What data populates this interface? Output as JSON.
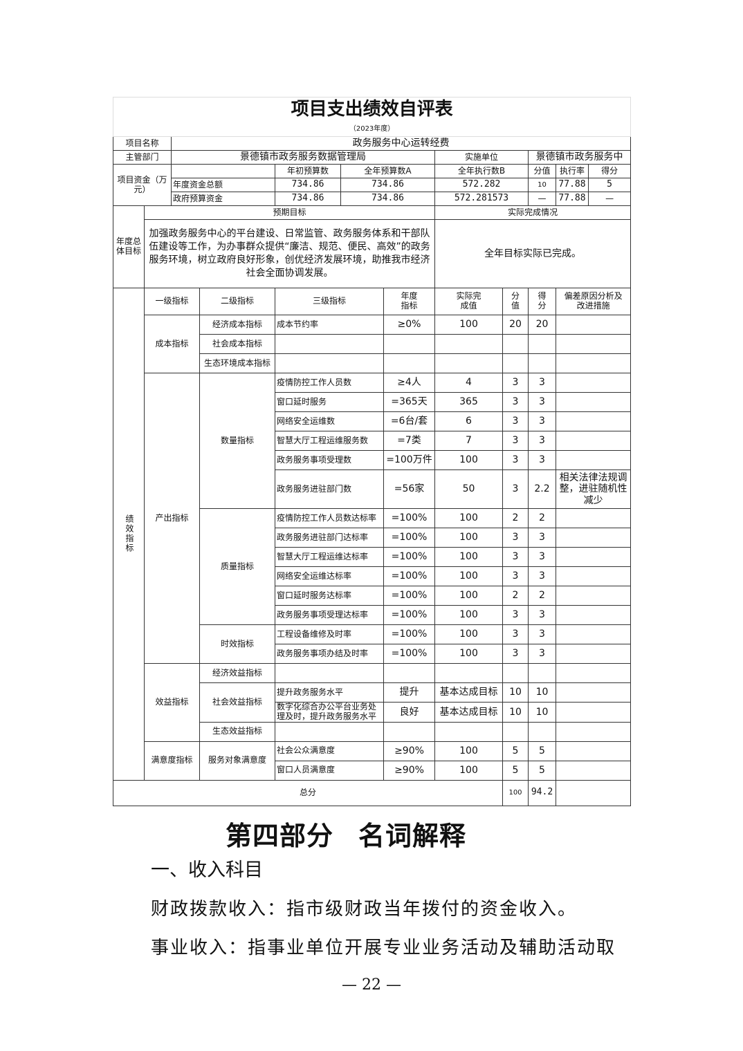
{
  "table": {
    "title": "项目支出绩效自评表",
    "year": "（2023年度）",
    "project_name_label": "项目名称",
    "project_name": "政务服务中心运转经费",
    "dept_label": "主管部门",
    "dept": "景德镇市政务服务数据管理局",
    "impl_label": "实施单位",
    "impl": "景德镇市政务服务中",
    "fund_label": "项目资金（万元）",
    "fund_headers": [
      "年初预算数",
      "全年预算数A",
      "全年执行数B",
      "分值",
      "执行率",
      "得分"
    ],
    "fund_rows": [
      {
        "name": "年度资金总额",
        "init": "734.86",
        "full": "734.86",
        "exec": "572.282",
        "score": "10",
        "rate": "77.88",
        "got": "5"
      },
      {
        "name": "政府预算资金",
        "init": "734.86",
        "full": "734.86",
        "exec": "572.281573",
        "score": "—",
        "rate": "77.88",
        "got": "—"
      }
    ],
    "goal_label": "年度总体目标",
    "goal_expected_label": "预期目标",
    "goal_actual_label": "实际完成情况",
    "goal_expected": "加强政务服务中心的平台建设、日常监管、政务服务体系和干部队伍建设等工作，为办事群众提供“廉洁、规范、便民、高效”的政务服务环境，树立政府良好形象，创优经济发展环境，助推我市经济社会全面协调发展。",
    "goal_actual": "全年目标实际已完成。",
    "perf_label": "绩效指标",
    "ind_headers": [
      "一级指标",
      "二级指标",
      "三级指标",
      "年度指标",
      "实际完成值",
      "分值",
      "得分",
      "偏差原因分析及改进措施"
    ],
    "indicators": [
      {
        "name": "成本指标",
        "subs": [
          {
            "name": "经济成本指标",
            "items": [
              {
                "name": "成本节约率",
                "target": "≥0%",
                "actual": "100",
                "score": "20",
                "got": "20",
                "note": ""
              }
            ]
          },
          {
            "name": "社会成本指标",
            "items": [
              {
                "name": "",
                "target": "",
                "actual": "",
                "score": "",
                "got": "",
                "note": ""
              }
            ]
          },
          {
            "name": "生态环境成本指标",
            "items": [
              {
                "name": "",
                "target": "",
                "actual": "",
                "score": "",
                "got": "",
                "note": ""
              }
            ]
          }
        ]
      },
      {
        "name": "产出指标",
        "subs": [
          {
            "name": "数量指标",
            "items": [
              {
                "name": "疫情防控工作人员数",
                "target": "≥4人",
                "actual": "4",
                "score": "3",
                "got": "3",
                "note": ""
              },
              {
                "name": "窗口延时服务",
                "target": "=365天",
                "actual": "365",
                "score": "3",
                "got": "3",
                "note": ""
              },
              {
                "name": "网络安全运维数",
                "target": "=6台/套",
                "actual": "6",
                "score": "3",
                "got": "3",
                "note": ""
              },
              {
                "name": "智慧大厅工程运维服务数",
                "target": "=7类",
                "actual": "7",
                "score": "3",
                "got": "3",
                "note": ""
              },
              {
                "name": "政务服务事项受理数",
                "target": "=100万件",
                "actual": "100",
                "score": "3",
                "got": "3",
                "note": ""
              },
              {
                "name": "政务服务进驻部门数",
                "target": "=56家",
                "actual": "50",
                "score": "3",
                "got": "2.2",
                "note": "相关法律法规调整，进驻随机性减少",
                "tall": true
              }
            ]
          },
          {
            "name": "质量指标",
            "items": [
              {
                "name": "疫情防控工作人员数达标率",
                "target": "=100%",
                "actual": "100",
                "score": "2",
                "got": "2",
                "note": ""
              },
              {
                "name": "政务服务进驻部门达标率",
                "target": "=100%",
                "actual": "100",
                "score": "3",
                "got": "3",
                "note": ""
              },
              {
                "name": "智慧大厅工程运维达标率",
                "target": "=100%",
                "actual": "100",
                "score": "3",
                "got": "3",
                "note": ""
              },
              {
                "name": "网络安全运维达标率",
                "target": "=100%",
                "actual": "100",
                "score": "3",
                "got": "3",
                "note": ""
              },
              {
                "name": "窗口延时服务达标率",
                "target": "=100%",
                "actual": "100",
                "score": "2",
                "got": "2",
                "note": ""
              },
              {
                "name": "政务服务事项受理达标率",
                "target": "=100%",
                "actual": "100",
                "score": "3",
                "got": "3",
                "note": ""
              }
            ]
          },
          {
            "name": "时效指标",
            "items": [
              {
                "name": "工程设备维修及时率",
                "target": "=100%",
                "actual": "100",
                "score": "3",
                "got": "3",
                "note": ""
              },
              {
                "name": "政务服务事项办结及时率",
                "target": "=100%",
                "actual": "100",
                "score": "3",
                "got": "3",
                "note": ""
              }
            ]
          }
        ]
      },
      {
        "name": "效益指标",
        "subs": [
          {
            "name": "经济效益指标",
            "items": [
              {
                "name": "",
                "target": "",
                "actual": "",
                "score": "",
                "got": "",
                "note": ""
              }
            ]
          },
          {
            "name": "社会效益指标",
            "items": [
              {
                "name": "提升政务服务水平",
                "target": "提升",
                "actual": "基本达成目标",
                "score": "10",
                "got": "10",
                "note": ""
              },
              {
                "name": "数字化综合办公平台业务处理及时，提升政务服务水平",
                "target": "良好",
                "actual": "基本达成目标",
                "score": "10",
                "got": "10",
                "note": ""
              }
            ]
          },
          {
            "name": "生态效益指标",
            "items": [
              {
                "name": "",
                "target": "",
                "actual": "",
                "score": "",
                "got": "",
                "note": ""
              }
            ]
          }
        ]
      },
      {
        "name": "满意度指标",
        "subs": [
          {
            "name": "服务对象满意度",
            "items": [
              {
                "name": "社会公众满意度",
                "target": "≥90%",
                "actual": "100",
                "score": "5",
                "got": "5",
                "note": ""
              },
              {
                "name": "窗口人员满意度",
                "target": "≥90%",
                "actual": "100",
                "score": "5",
                "got": "5",
                "note": ""
              }
            ]
          }
        ]
      }
    ],
    "total_label": "总分",
    "total_score": "100",
    "total_got": "94.2"
  },
  "section_title": [
    "第四部分",
    "名词解释"
  ],
  "subsection": "一、收入科目",
  "paragraphs": [
    "财政拨款收入：指市级财政当年拨付的资金收入。",
    "事业收入：指事业单位开展专业业务活动及辅助活动取"
  ],
  "page_number": "— 22 —"
}
